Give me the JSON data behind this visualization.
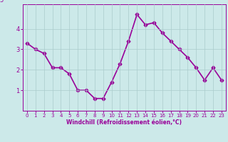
{
  "x": [
    0,
    1,
    2,
    3,
    4,
    5,
    6,
    7,
    8,
    9,
    10,
    11,
    12,
    13,
    14,
    15,
    16,
    17,
    18,
    19,
    20,
    21,
    22,
    23
  ],
  "y": [
    3.3,
    3.0,
    2.8,
    2.1,
    2.1,
    1.8,
    1.0,
    1.0,
    0.6,
    0.6,
    1.4,
    2.3,
    3.4,
    4.7,
    4.2,
    4.3,
    3.8,
    3.4,
    3.0,
    2.6,
    2.1,
    1.5,
    2.1,
    1.5
  ],
  "line_color": "#990099",
  "marker": "D",
  "marker_size": 2.5,
  "bg_color": "#cce9e9",
  "grid_color": "#aacccc",
  "xlabel": "Windchill (Refroidissement éolien,°C)",
  "xlabel_color": "#990099",
  "tick_color": "#990099",
  "xlim": [
    -0.5,
    23.5
  ],
  "ylim": [
    0,
    5.2
  ],
  "yticks": [
    1,
    2,
    3,
    4
  ],
  "xticks": [
    0,
    1,
    2,
    3,
    4,
    5,
    6,
    7,
    8,
    9,
    10,
    11,
    12,
    13,
    14,
    15,
    16,
    17,
    18,
    19,
    20,
    21,
    22,
    23
  ],
  "line_width": 1.2,
  "fig_bg_color": "#cce9e9"
}
